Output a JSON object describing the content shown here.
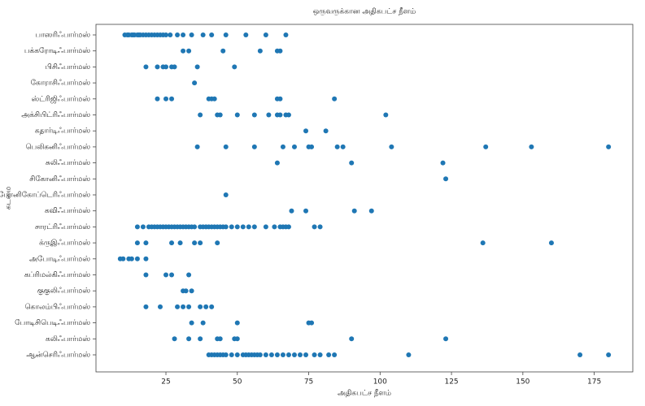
{
  "chart_data": {
    "type": "scatter",
    "title": "ஒருவருக்கான அதிகபட்ச நீளம்",
    "xlabel": "அதிகபட்ச நீளம்",
    "ylabel": "கடமை",
    "color": "#1f77b4",
    "xlim": [
      0.5,
      188.5
    ],
    "xticks": [
      25,
      50,
      75,
      100,
      125,
      150,
      175
    ],
    "categories": [
      "பாஸரிஃபார்மஸ்",
      "பக்கரோடிஃபார்மஸ்",
      "பிசிஃபார்மஸ்",
      "கோராசிஃபார்மஸ்",
      "ஸ்ட்ரிஜிஃபார்மஸ்",
      "அக்சிபிட்ரிஃபார்மஸ்",
      "கதார்டிஃபார்மஸ்",
      "பெலிகனிஃபார்மஸ்",
      "சுலிஃபார்மஸ்",
      "சிகோனிஃபார்மஸ்",
      "போனிகோப்டெரிஃபார்மஸ்",
      "கவிஃபார்மஸ்",
      "சாரட்ரிஃபார்மஸ்",
      "க்ருஇஃபார்மஸ்",
      "அபோடிஃபார்மஸ்",
      "கப்ரிமல்கிஃபார்மஸ்",
      "குகுலிஃபார்மஸ்",
      "கொலம்பிஃபார்மஸ்",
      "போடிசிபெடிஃபார்மஸ்",
      "கலிஃபார்மஸ்",
      "ஆன்செரிஃபார்மஸ்"
    ],
    "values": [
      [
        10.6,
        11.5,
        12,
        13,
        13.5,
        14,
        15,
        15.5,
        16,
        17,
        18,
        19,
        20,
        21,
        22,
        23,
        24,
        25,
        26.5,
        29,
        31,
        34,
        38,
        41,
        46,
        53,
        60,
        67
      ],
      [
        31,
        33,
        45,
        58,
        64,
        65
      ],
      [
        18,
        22,
        24,
        25,
        27,
        28,
        36,
        49
      ],
      [
        35
      ],
      [
        22,
        25,
        27,
        40,
        41,
        42,
        64,
        65,
        84
      ],
      [
        37,
        43,
        44,
        50,
        56,
        61,
        64,
        65,
        67,
        68,
        102
      ],
      [
        74,
        81
      ],
      [
        36,
        46,
        56,
        66,
        70,
        75,
        76,
        85,
        87,
        104,
        137,
        153,
        180
      ],
      [
        64,
        90,
        122
      ],
      [
        123
      ],
      [
        46
      ],
      [
        69,
        74,
        91,
        97
      ],
      [
        15,
        17,
        19,
        20,
        21,
        22,
        23,
        24,
        25,
        26,
        27,
        28,
        29,
        30,
        31,
        32,
        33,
        34,
        35,
        37,
        38,
        39,
        40,
        41,
        42,
        43,
        44,
        45,
        46,
        48,
        50,
        52,
        54,
        56,
        60,
        63,
        65,
        66,
        67,
        68,
        77,
        79
      ],
      [
        15,
        18,
        27,
        30,
        35,
        37,
        43,
        136,
        160
      ],
      [
        9,
        10,
        12,
        13,
        15,
        18
      ],
      [
        18,
        25,
        27,
        33
      ],
      [
        31,
        32,
        34
      ],
      [
        18,
        23,
        29,
        31,
        33,
        37,
        39,
        41
      ],
      [
        34,
        38,
        50,
        75,
        76
      ],
      [
        28,
        33,
        37,
        43,
        44,
        49,
        50,
        90,
        123
      ],
      [
        40,
        41,
        42,
        43,
        44,
        45,
        46,
        48,
        50,
        52,
        53,
        54,
        55,
        56,
        57,
        58,
        60,
        62,
        64,
        66,
        68,
        70,
        72,
        74,
        77,
        79,
        82,
        84,
        110,
        170,
        180
      ]
    ]
  }
}
